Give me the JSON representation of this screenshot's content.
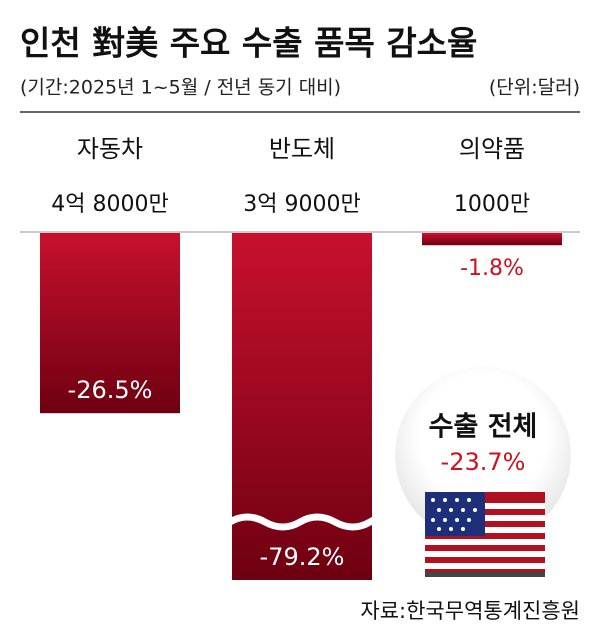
{
  "chart_data": {
    "type": "bar",
    "title": "인천 對美 주요 수출 품목 감소율",
    "subtitle": "(기간:2025년 1~5월 / 전년 동기 대비)",
    "unit": "(단위:달러)",
    "categories": [
      "자동차",
      "반도체",
      "의약품"
    ],
    "amounts": [
      "4억 8000만",
      "3억 9000만",
      "1000만"
    ],
    "values": [
      -26.5,
      -79.2,
      -1.8
    ],
    "value_labels": [
      "-26.5%",
      "-79.2%",
      "-1.8%"
    ],
    "color": "#c8102e",
    "total": {
      "label": "수출 전체",
      "value": -23.7,
      "value_label": "-23.7%"
    },
    "source": "자료:한국무역통계진흥원"
  }
}
